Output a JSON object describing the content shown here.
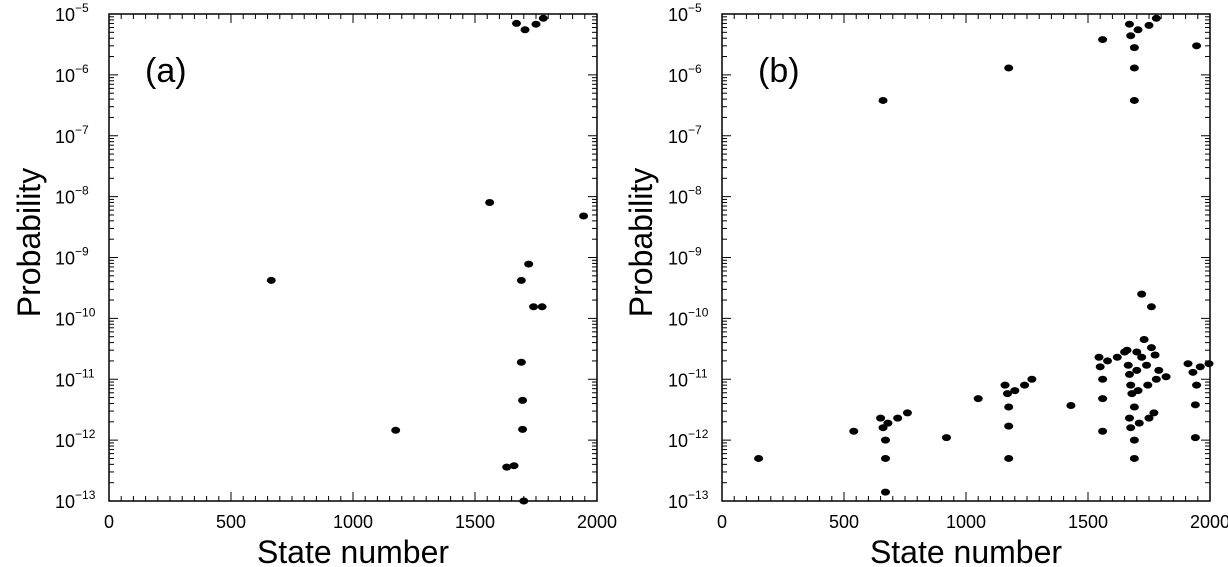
{
  "chart_data": [
    {
      "type": "scatter",
      "panel_label": "(a)",
      "xlabel": "State number",
      "ylabel": "Probability",
      "y_scale": "log",
      "xlim": [
        0,
        2000
      ],
      "ylim": [
        1e-13,
        1e-05
      ],
      "x_ticks": [
        0,
        500,
        1000,
        1500,
        2000
      ],
      "y_ticks": [
        {
          "value": 1e-13,
          "base": "10",
          "exp": "−13"
        },
        {
          "value": 1e-12,
          "base": "10",
          "exp": "−12"
        },
        {
          "value": 1e-11,
          "base": "10",
          "exp": "−11"
        },
        {
          "value": 1e-10,
          "base": "10",
          "exp": "−10"
        },
        {
          "value": 1e-09,
          "base": "10",
          "exp": "−9"
        },
        {
          "value": 1e-08,
          "base": "10",
          "exp": "−8"
        },
        {
          "value": 1e-07,
          "base": "10",
          "exp": "−7"
        },
        {
          "value": 1e-06,
          "base": "10",
          "exp": "−6"
        },
        {
          "value": 1e-05,
          "base": "10",
          "exp": "−5"
        }
      ],
      "grid": false,
      "marker_color": "#000000",
      "points": [
        [
          665,
          4.2e-10
        ],
        [
          1175,
          1.45e-12
        ],
        [
          1560,
          8e-09
        ],
        [
          1945,
          4.8e-09
        ],
        [
          1670,
          7e-06
        ],
        [
          1705,
          5.5e-06
        ],
        [
          1750,
          6.8e-06
        ],
        [
          1780,
          8.5e-06
        ],
        [
          1690,
          4.2e-10
        ],
        [
          1720,
          7.8e-10
        ],
        [
          1740,
          1.55e-10
        ],
        [
          1775,
          1.55e-10
        ],
        [
          1690,
          1.9e-11
        ],
        [
          1695,
          4.5e-12
        ],
        [
          1695,
          1.5e-12
        ],
        [
          1630,
          3.6e-13
        ],
        [
          1660,
          3.8e-13
        ],
        [
          1700,
          1e-13
        ]
      ]
    },
    {
      "type": "scatter",
      "panel_label": "(b)",
      "xlabel": "State number",
      "ylabel": "Probability",
      "y_scale": "log",
      "xlim": [
        0,
        2000
      ],
      "ylim": [
        1e-13,
        1e-05
      ],
      "x_ticks": [
        0,
        500,
        1000,
        1500,
        2000
      ],
      "y_ticks": [
        {
          "value": 1e-13,
          "base": "10",
          "exp": "−13"
        },
        {
          "value": 1e-12,
          "base": "10",
          "exp": "−12"
        },
        {
          "value": 1e-11,
          "base": "10",
          "exp": "−11"
        },
        {
          "value": 1e-10,
          "base": "10",
          "exp": "−10"
        },
        {
          "value": 1e-09,
          "base": "10",
          "exp": "−9"
        },
        {
          "value": 1e-08,
          "base": "10",
          "exp": "−8"
        },
        {
          "value": 1e-07,
          "base": "10",
          "exp": "−7"
        },
        {
          "value": 1e-06,
          "base": "10",
          "exp": "−6"
        },
        {
          "value": 1e-05,
          "base": "10",
          "exp": "−5"
        }
      ],
      "grid": false,
      "marker_color": "#000000",
      "points": [
        [
          660,
          3.8e-07
        ],
        [
          1175,
          1.3e-06
        ],
        [
          1560,
          3.8e-06
        ],
        [
          1945,
          3e-06
        ],
        [
          1670,
          6.8e-06
        ],
        [
          1705,
          5.5e-06
        ],
        [
          1750,
          6.5e-06
        ],
        [
          1780,
          8.5e-06
        ],
        [
          1675,
          4.4e-06
        ],
        [
          1690,
          2.8e-06
        ],
        [
          1690,
          1.3e-06
        ],
        [
          1690,
          3.8e-07
        ],
        [
          1720,
          2.5e-10
        ],
        [
          1760,
          1.55e-10
        ],
        [
          150,
          5e-13
        ],
        [
          540,
          1.4e-12
        ],
        [
          650,
          2.3e-12
        ],
        [
          660,
          1.6e-12
        ],
        [
          670,
          1e-12
        ],
        [
          670,
          5e-13
        ],
        [
          670,
          1.4e-13
        ],
        [
          680,
          1.9e-12
        ],
        [
          720,
          2.3e-12
        ],
        [
          760,
          2.8e-12
        ],
        [
          920,
          1.1e-12
        ],
        [
          1050,
          4.8e-12
        ],
        [
          1160,
          8e-12
        ],
        [
          1170,
          5.8e-12
        ],
        [
          1175,
          3.5e-12
        ],
        [
          1175,
          1.7e-12
        ],
        [
          1175,
          5e-13
        ],
        [
          1200,
          6.5e-12
        ],
        [
          1240,
          8e-12
        ],
        [
          1270,
          1e-11
        ],
        [
          1430,
          3.7e-12
        ],
        [
          1545,
          2.3e-11
        ],
        [
          1550,
          1.6e-11
        ],
        [
          1560,
          1e-11
        ],
        [
          1560,
          4.8e-12
        ],
        [
          1560,
          1.4e-12
        ],
        [
          1580,
          2e-11
        ],
        [
          1620,
          2.3e-11
        ],
        [
          1650,
          2.8e-11
        ],
        [
          1660,
          3e-11
        ],
        [
          1665,
          1.7e-11
        ],
        [
          1670,
          1.2e-11
        ],
        [
          1675,
          8e-12
        ],
        [
          1680,
          5.8e-12
        ],
        [
          1670,
          2.3e-12
        ],
        [
          1675,
          1.6e-12
        ],
        [
          1690,
          3.5e-12
        ],
        [
          1690,
          1e-12
        ],
        [
          1690,
          5e-13
        ],
        [
          1700,
          2.8e-11
        ],
        [
          1700,
          1.4e-11
        ],
        [
          1705,
          6.5e-12
        ],
        [
          1710,
          1.9e-12
        ],
        [
          1720,
          2.3e-11
        ],
        [
          1730,
          4.5e-11
        ],
        [
          1740,
          1.7e-11
        ],
        [
          1745,
          8e-12
        ],
        [
          1750,
          2.3e-12
        ],
        [
          1760,
          3.3e-11
        ],
        [
          1770,
          2.8e-12
        ],
        [
          1775,
          2.5e-11
        ],
        [
          1780,
          1e-11
        ],
        [
          1790,
          1.4e-11
        ],
        [
          1820,
          1.1e-11
        ],
        [
          1910,
          1.8e-11
        ],
        [
          1930,
          1.3e-11
        ],
        [
          1940,
          3.8e-12
        ],
        [
          1940,
          1.1e-12
        ],
        [
          1945,
          8e-12
        ],
        [
          1960,
          1.6e-11
        ],
        [
          2010,
          1.8e-11
        ]
      ]
    }
  ]
}
